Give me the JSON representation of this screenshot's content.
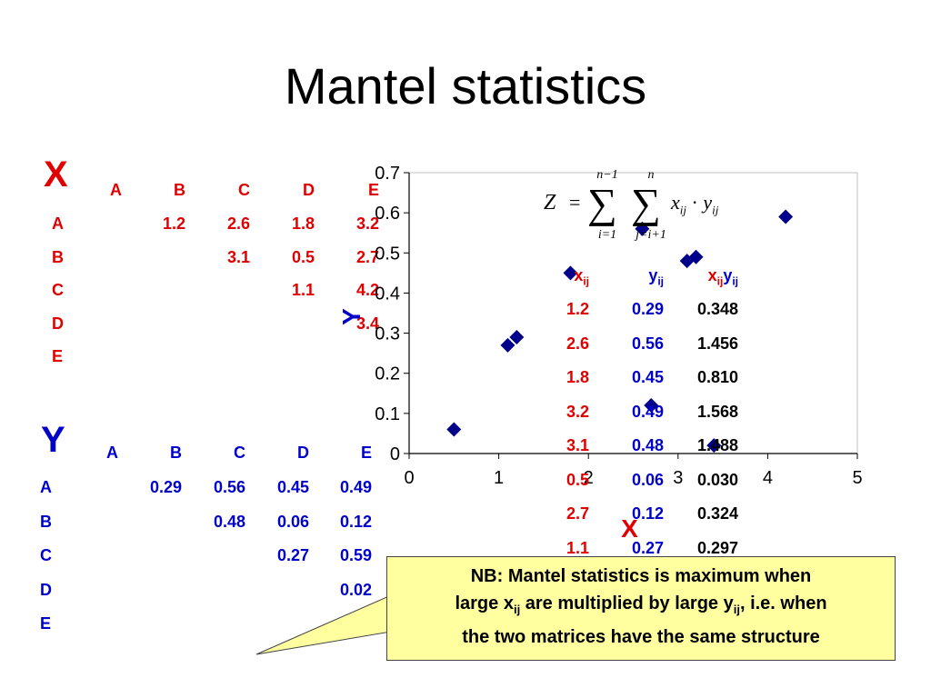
{
  "title": "Mantel statistics",
  "matrix_x": {
    "label": "X",
    "columns": [
      "A",
      "B",
      "C",
      "D",
      "E"
    ],
    "rows": [
      "A",
      "B",
      "C",
      "D",
      "E"
    ],
    "cells": [
      {
        "row": 0,
        "col": 1,
        "value": "1.2"
      },
      {
        "row": 0,
        "col": 2,
        "value": "2.6"
      },
      {
        "row": 0,
        "col": 3,
        "value": "1.8"
      },
      {
        "row": 0,
        "col": 4,
        "value": "3.2"
      },
      {
        "row": 1,
        "col": 2,
        "value": "3.1"
      },
      {
        "row": 1,
        "col": 3,
        "value": "0.5"
      },
      {
        "row": 1,
        "col": 4,
        "value": "2.7"
      },
      {
        "row": 2,
        "col": 3,
        "value": "1.1"
      },
      {
        "row": 2,
        "col": 4,
        "value": "4.2"
      },
      {
        "row": 3,
        "col": 4,
        "value": "3.4"
      }
    ]
  },
  "matrix_y": {
    "label": "Y",
    "columns": [
      "A",
      "B",
      "C",
      "D",
      "E"
    ],
    "rows": [
      "A",
      "B",
      "C",
      "D",
      "E"
    ],
    "cells": [
      {
        "row": 0,
        "col": 1,
        "value": "0.29"
      },
      {
        "row": 0,
        "col": 2,
        "value": "0.56"
      },
      {
        "row": 0,
        "col": 3,
        "value": "0.45"
      },
      {
        "row": 0,
        "col": 4,
        "value": "0.49"
      },
      {
        "row": 1,
        "col": 2,
        "value": "0.48"
      },
      {
        "row": 1,
        "col": 3,
        "value": "0.06"
      },
      {
        "row": 1,
        "col": 4,
        "value": "0.12"
      },
      {
        "row": 2,
        "col": 3,
        "value": "0.27"
      },
      {
        "row": 2,
        "col": 4,
        "value": "0.59"
      },
      {
        "row": 3,
        "col": 4,
        "value": "0.02"
      }
    ]
  },
  "formula": {
    "lhs": "Z",
    "equals": "=",
    "sum1_upper": "n−1",
    "sum1_lower": "i=1",
    "sum2_upper": "n",
    "sum2_lower": "j=i+1",
    "sigma": "∑",
    "term_x": "x",
    "term_y": "y",
    "sub": "ij",
    "dot": "·"
  },
  "products_table": {
    "headers": {
      "x": "x",
      "y": "y",
      "sub": "ij"
    },
    "rows": [
      {
        "x": "1.2",
        "y": "0.29",
        "xy": "0.348"
      },
      {
        "x": "2.6",
        "y": "0.56",
        "xy": "1.456"
      },
      {
        "x": "1.8",
        "y": "0.45",
        "xy": "0.810"
      },
      {
        "x": "3.2",
        "y": "0.49",
        "xy": "1.568"
      },
      {
        "x": "3.1",
        "y": "0.48",
        "xy": "1.488"
      },
      {
        "x": "0.5",
        "y": "0.06",
        "xy": "0.030"
      },
      {
        "x": "2.7",
        "y": "0.12",
        "xy": "0.324"
      },
      {
        "x": "1.1",
        "y": "0.27",
        "xy": "0.297"
      }
    ]
  },
  "chart_data": {
    "type": "scatter",
    "xlabel": "X",
    "ylabel": "Y",
    "xlim": [
      0,
      5
    ],
    "ylim": [
      0,
      0.7
    ],
    "xticks": [
      "0",
      "1",
      "2",
      "3",
      "4",
      "5"
    ],
    "yticks": [
      "0",
      "0.1",
      "0.2",
      "0.3",
      "0.4",
      "0.5",
      "0.6",
      "0.7"
    ],
    "grid": false,
    "marker_color": "#00008b",
    "points": [
      {
        "x": 1.2,
        "y": 0.29
      },
      {
        "x": 2.6,
        "y": 0.56
      },
      {
        "x": 1.8,
        "y": 0.45
      },
      {
        "x": 3.2,
        "y": 0.49
      },
      {
        "x": 3.1,
        "y": 0.48
      },
      {
        "x": 0.5,
        "y": 0.06
      },
      {
        "x": 2.7,
        "y": 0.12
      },
      {
        "x": 1.1,
        "y": 0.27
      },
      {
        "x": 4.2,
        "y": 0.59
      },
      {
        "x": 3.4,
        "y": 0.02
      }
    ]
  },
  "note": {
    "line1": "NB: Mantel statistics is maximum when",
    "line2_a": "large x",
    "line2_b": " are multiplied by large y",
    "line2_c": ", i.e. when",
    "sub": "ij",
    "line3": "the two matrices have the same structure"
  },
  "colors": {
    "x_color": "#e00000",
    "y_color": "#0000cc",
    "accent": "#00008b"
  }
}
